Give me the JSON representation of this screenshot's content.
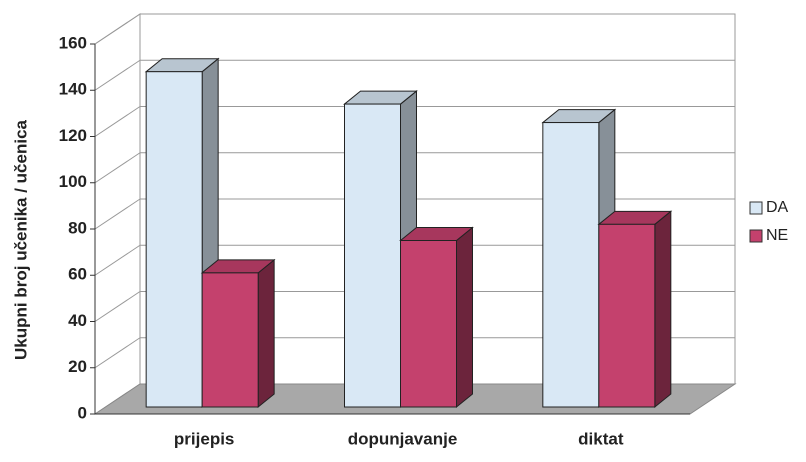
{
  "chart_data": {
    "type": "bar3d",
    "y_label": "Ukupni broj učenika  / učenica",
    "categories": [
      "prijepis",
      "dopunjavanje",
      "diktat"
    ],
    "series": [
      {
        "name": "DA",
        "color": "#d9e8f5",
        "values": [
          145,
          131,
          123
        ]
      },
      {
        "name": "NE",
        "color": "#c4416d",
        "values": [
          58,
          72,
          79
        ]
      }
    ],
    "ylim": [
      0,
      160
    ],
    "yticks": [
      0,
      20,
      40,
      60,
      80,
      100,
      120,
      140,
      160
    ],
    "grid": true,
    "legend": "right"
  }
}
